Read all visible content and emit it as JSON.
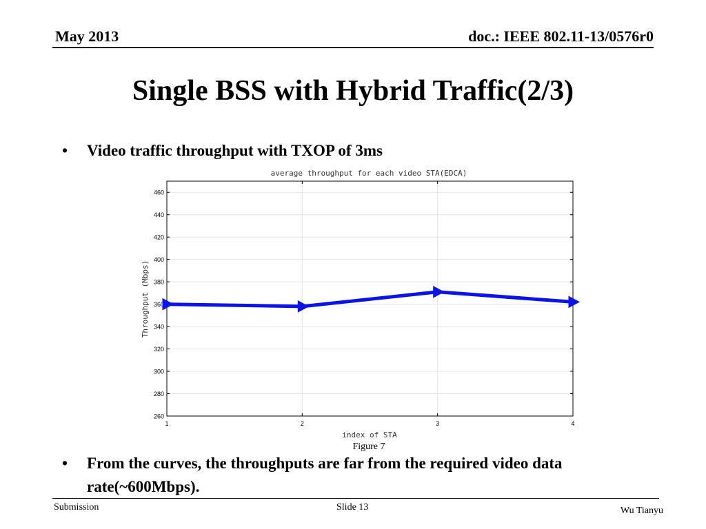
{
  "header": {
    "left": "May 2013",
    "right": "doc.: IEEE 802.11-13/0576r0"
  },
  "slide": {
    "title": "Single BSS with Hybrid Traffic(2/3)",
    "bullets": [
      {
        "marker": "•",
        "text": "Video traffic throughput with TXOP of 3ms"
      },
      {
        "marker": "•",
        "text": "From the curves, the throughputs are far from the required video data rate(~600Mbps)."
      }
    ],
    "figure_caption": "Figure 7"
  },
  "chart_data": {
    "type": "line",
    "title": "average throughput for each video STA(EDCA)",
    "xlabel": "index of STA",
    "ylabel": "Throughput (Mbps)",
    "x": [
      1,
      2,
      3,
      4
    ],
    "xticks": [
      "1",
      "2",
      "3",
      "4"
    ],
    "xlim": [
      1,
      4
    ],
    "ylim": [
      260,
      470
    ],
    "yticks": [
      "260",
      "280",
      "300",
      "320",
      "340",
      "360",
      "380",
      "400",
      "420",
      "440",
      "460"
    ],
    "grid": true,
    "series": [
      {
        "color": "#0a14e6",
        "marker": "right-triangle",
        "values": [
          360,
          358,
          371,
          362
        ]
      }
    ]
  },
  "footer": {
    "left": "Submission",
    "center": "Slide 13",
    "right": "Wu Tianyu"
  }
}
